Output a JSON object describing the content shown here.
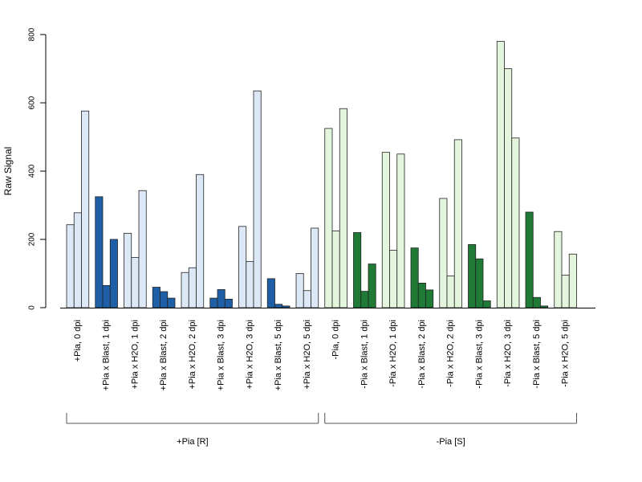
{
  "chart_data": {
    "type": "bar",
    "ylabel": "Raw Signal",
    "ylim": [
      0,
      800
    ],
    "yticks": [
      0,
      200,
      400,
      600,
      800
    ],
    "grid": false,
    "categories": [
      "+Pia, 0 dpi",
      "+Pia x Blast, 1 dpi",
      "+Pia x H2O, 1 dpi",
      "+Pia x Blast, 2 dpi",
      "+Pia x H2O, 2 dpi",
      "+Pia x Blast, 3 dpi",
      "+Pia x H2O, 3 dpi",
      "+Pia x Blast, 5 dpi",
      "+Pia x H2O, 5 dpi",
      "-Pia, 0 dpi",
      "-Pia x Blast, 1 dpi",
      "-Pia x H2O, 1 dpi",
      "-Pia x Blast, 2 dpi",
      "-Pia x H2O, 2 dpi",
      "-Pia x Blast, 3 dpi",
      "-Pia x H2O, 3 dpi",
      "-Pia x Blast, 5 dpi",
      "-Pia x H2O, 5 dpi"
    ],
    "replicates": [
      [
        243,
        278,
        576
      ],
      [
        325,
        65,
        200
      ],
      [
        218,
        147,
        343
      ],
      [
        60,
        47,
        28
      ],
      [
        103,
        117,
        390
      ],
      [
        28,
        53,
        25
      ],
      [
        238,
        135,
        635
      ],
      [
        85,
        10,
        5
      ],
      [
        100,
        50,
        233
      ],
      [
        525,
        225,
        583
      ],
      [
        220,
        48,
        128
      ],
      [
        455,
        168,
        450
      ],
      [
        175,
        72,
        52
      ],
      [
        320,
        93,
        492
      ],
      [
        185,
        143,
        20
      ],
      [
        780,
        700,
        497
      ],
      [
        280,
        30,
        5
      ],
      [
        223,
        95,
        157
      ]
    ],
    "bar_colors": [
      "#dce8f6",
      "#1f5fa8",
      "#dce8f6",
      "#1f5fa8",
      "#dce8f6",
      "#1f5fa8",
      "#dce8f6",
      "#1f5fa8",
      "#dce8f6",
      "#e3f5dc",
      "#1e7a35",
      "#e3f5dc",
      "#1e7a35",
      "#e3f5dc",
      "#1e7a35",
      "#e3f5dc",
      "#1e7a35",
      "#e3f5dc"
    ],
    "groups": [
      {
        "label": "+Pia [R]",
        "first": 0,
        "last": 8
      },
      {
        "label": "-Pia [S]",
        "first": 9,
        "last": 17
      }
    ]
  }
}
